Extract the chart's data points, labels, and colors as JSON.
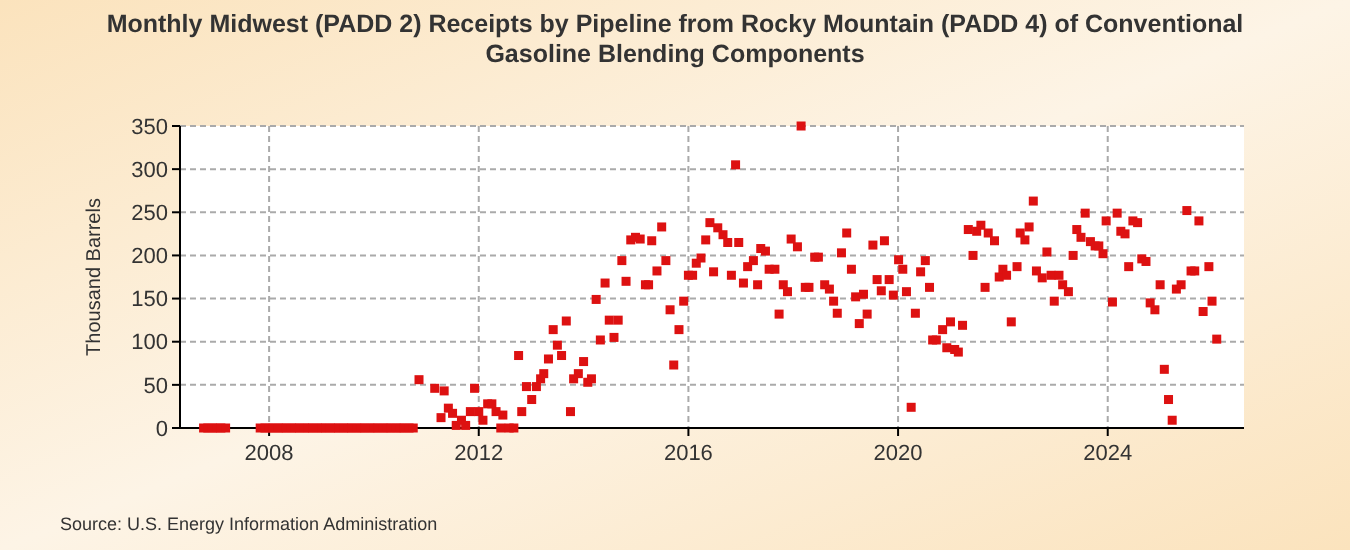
{
  "chart_data": {
    "type": "scatter",
    "title": "Monthly Midwest (PADD 2) Receipts by Pipeline from Rocky Mountain (PADD 4) of Conventional Gasoline Blending Components",
    "ylabel": "Thousand Barrels",
    "annotations": [
      "Source: U.S. Energy Information Administration"
    ],
    "xlim": [
      2006.3,
      2026.6
    ],
    "xticks": [
      2008,
      2012,
      2016,
      2020,
      2024
    ],
    "ylim": [
      0,
      350
    ],
    "yticks": [
      0,
      50,
      100,
      150,
      200,
      250,
      300,
      350
    ],
    "grid": true,
    "marker": "square",
    "series": [
      {
        "color": "#dd1111",
        "x": [
          2006.75,
          2006.83,
          2006.92,
          2007,
          2007.08,
          2007.17,
          2007.83,
          2007.92,
          2008,
          2008.08,
          2008.17,
          2008.25,
          2008.33,
          2008.42,
          2008.5,
          2008.58,
          2008.67,
          2008.75,
          2008.83,
          2008.92,
          2009,
          2009.08,
          2009.17,
          2009.25,
          2009.33,
          2009.42,
          2009.5,
          2009.58,
          2009.67,
          2009.75,
          2009.83,
          2009.92,
          2010,
          2010.08,
          2010.17,
          2010.25,
          2010.33,
          2010.42,
          2010.5,
          2010.58,
          2010.67,
          2010.75,
          2010.86,
          2011.16,
          2011.28,
          2011.34,
          2011.42,
          2011.5,
          2011.57,
          2011.67,
          2011.75,
          2011.84,
          2011.92,
          2012,
          2012.08,
          2012.17,
          2012.25,
          2012.33,
          2012.42,
          2012.46,
          2012.58,
          2012.67,
          2012.76,
          2012.82,
          2012.91,
          2013.01,
          2013.1,
          2013.18,
          2013.24,
          2013.33,
          2013.42,
          2013.5,
          2013.58,
          2013.67,
          2013.75,
          2013.81,
          2013.9,
          2014,
          2014.08,
          2014.15,
          2014.24,
          2014.32,
          2014.41,
          2014.49,
          2014.58,
          2014.66,
          2014.73,
          2014.81,
          2014.9,
          2014.99,
          2015.08,
          2015.18,
          2015.24,
          2015.3,
          2015.4,
          2015.49,
          2015.57,
          2015.65,
          2015.72,
          2015.82,
          2015.91,
          2016,
          2016.08,
          2016.15,
          2016.24,
          2016.33,
          2016.41,
          2016.48,
          2016.56,
          2016.66,
          2016.75,
          2016.82,
          2016.9,
          2016.96,
          2017.05,
          2017.13,
          2017.24,
          2017.32,
          2017.38,
          2017.47,
          2017.54,
          2017.65,
          2017.73,
          2017.81,
          2017.89,
          2017.96,
          2018.08,
          2018.15,
          2018.23,
          2018.3,
          2018.41,
          2018.48,
          2018.6,
          2018.69,
          2018.77,
          2018.84,
          2018.92,
          2019.02,
          2019.11,
          2019.19,
          2019.26,
          2019.34,
          2019.41,
          2019.52,
          2019.6,
          2019.68,
          2019.74,
          2019.83,
          2019.91,
          2020.01,
          2020.09,
          2020.16,
          2020.25,
          2020.33,
          2020.43,
          2020.52,
          2020.6,
          2020.66,
          2020.73,
          2020.85,
          2020.93,
          2021,
          2021.08,
          2021.15,
          2021.23,
          2021.34,
          2021.43,
          2021.5,
          2021.58,
          2021.66,
          2021.72,
          2021.84,
          2021.93,
          2022,
          2022.07,
          2022.16,
          2022.27,
          2022.33,
          2022.42,
          2022.5,
          2022.58,
          2022.64,
          2022.75,
          2022.84,
          2022.92,
          2022.98,
          2023.07,
          2023.14,
          2023.25,
          2023.34,
          2023.41,
          2023.49,
          2023.57,
          2023.67,
          2023.76,
          2023.83,
          2023.91,
          2023.97,
          2024.09,
          2024.18,
          2024.25,
          2024.33,
          2024.4,
          2024.48,
          2024.57,
          2024.65,
          2024.73,
          2024.81,
          2024.9,
          2025,
          2025.08,
          2025.16,
          2025.23,
          2025.31,
          2025.4,
          2025.51,
          2025.59,
          2025.66,
          2025.74,
          2025.82,
          2025.93,
          2025.99,
          2026.08
        ],
        "values": [
          0,
          0,
          0,
          0,
          0,
          0,
          0,
          0,
          0,
          0,
          0,
          0,
          0,
          0,
          0,
          0,
          0,
          0,
          0,
          0,
          0,
          0,
          0,
          0,
          0,
          0,
          0,
          0,
          0,
          0,
          0,
          0,
          0,
          0,
          0,
          0,
          0,
          0,
          0,
          0,
          0,
          0,
          56,
          46,
          12,
          43,
          23,
          17,
          3,
          9,
          3,
          19,
          46,
          19,
          9,
          28,
          28,
          19,
          0,
          15,
          0,
          0,
          84,
          19,
          48,
          33,
          48,
          57,
          63,
          80,
          114,
          96,
          84,
          124,
          19,
          57,
          63,
          77,
          53,
          57,
          149,
          102,
          168,
          125,
          105,
          125,
          194,
          170,
          218,
          221,
          219,
          166,
          166,
          217,
          182,
          233,
          194,
          137,
          73,
          114,
          147,
          177,
          177,
          191,
          197,
          218,
          238,
          181,
          232,
          224,
          215,
          177,
          305,
          215,
          168,
          187,
          194,
          166,
          208,
          205,
          184,
          184,
          132,
          166,
          158,
          219,
          210,
          350,
          163,
          163,
          198,
          198,
          166,
          161,
          147,
          133,
          203,
          226,
          184,
          152,
          121,
          155,
          132,
          212,
          172,
          159,
          217,
          172,
          154,
          195,
          184,
          158,
          24,
          133,
          181,
          194,
          163,
          102,
          102,
          114,
          93,
          123,
          91,
          88,
          119,
          230,
          200,
          228,
          235,
          163,
          226,
          217,
          175,
          184,
          177,
          123,
          187,
          226,
          218,
          233,
          263,
          182,
          174,
          204,
          177,
          147,
          177,
          166,
          158,
          200,
          230,
          221,
          249,
          216,
          211,
          211,
          202,
          240,
          146,
          249,
          228,
          225,
          187,
          240,
          238,
          196,
          193,
          145,
          137,
          166,
          68,
          33,
          9,
          161,
          166,
          252,
          182,
          182,
          240,
          135,
          187,
          147,
          103
        ]
      }
    ]
  }
}
